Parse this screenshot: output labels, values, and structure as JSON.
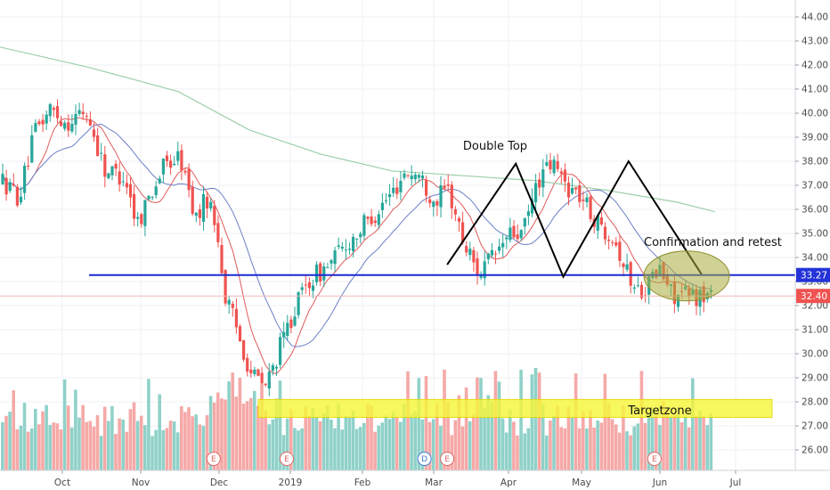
{
  "chart_data": {
    "type": "candlestick",
    "x_ticks": [
      "Oct",
      "Nov",
      "Dec",
      "2019",
      "Feb",
      "Mar",
      "Apr",
      "May",
      "Jun",
      "Jul"
    ],
    "y_ticks": [
      "26.00",
      "27.00",
      "28.00",
      "29.00",
      "30.00",
      "31.00",
      "32.00",
      "33.00",
      "34.00",
      "35.00",
      "36.00",
      "37.00",
      "38.00",
      "39.00",
      "40.00",
      "41.00",
      "42.00",
      "43.00",
      "44.00"
    ],
    "ylim": [
      25.3,
      44.4
    ],
    "price_labels": {
      "support": "33.27",
      "last": "32.40"
    },
    "support_level": 33.27,
    "last_price": 32.4,
    "annotations": {
      "double_top": "Double Top",
      "confirmation": "Confirmation and retest",
      "targetzone": "Targetzone"
    },
    "target_zone": [
      27.35,
      28.1
    ],
    "event_badges": [
      {
        "letter": "E",
        "month_pos": 1.93
      },
      {
        "letter": "E",
        "month_pos": 2.95
      },
      {
        "letter": "D",
        "month_pos": 4.87
      },
      {
        "letter": "E",
        "month_pos": 5.18
      },
      {
        "letter": "E",
        "month_pos": 7.93
      }
    ],
    "double_top_pattern": [
      {
        "month_pos": 5.18,
        "price": 33.7
      },
      {
        "month_pos": 6.1,
        "price": 37.9
      },
      {
        "month_pos": 6.75,
        "price": 33.2
      },
      {
        "month_pos": 7.6,
        "price": 38.0
      },
      {
        "month_pos": 8.55,
        "price": 33.3
      }
    ],
    "colors": {
      "up": "#26a69a",
      "down": "#ef5350",
      "volume_up": "#8fd1c8",
      "volume_down": "#f5a9a7",
      "ma_fast": "#e05a5a",
      "ma_mid": "#6d7fc7",
      "ma_slow": "#9ccfab",
      "support_line": "#1a2bd6",
      "support_label": "#2433d9",
      "last_label": "#ef5350",
      "zone": "#f5f53a",
      "ellipse": "#a9ab3c"
    }
  }
}
